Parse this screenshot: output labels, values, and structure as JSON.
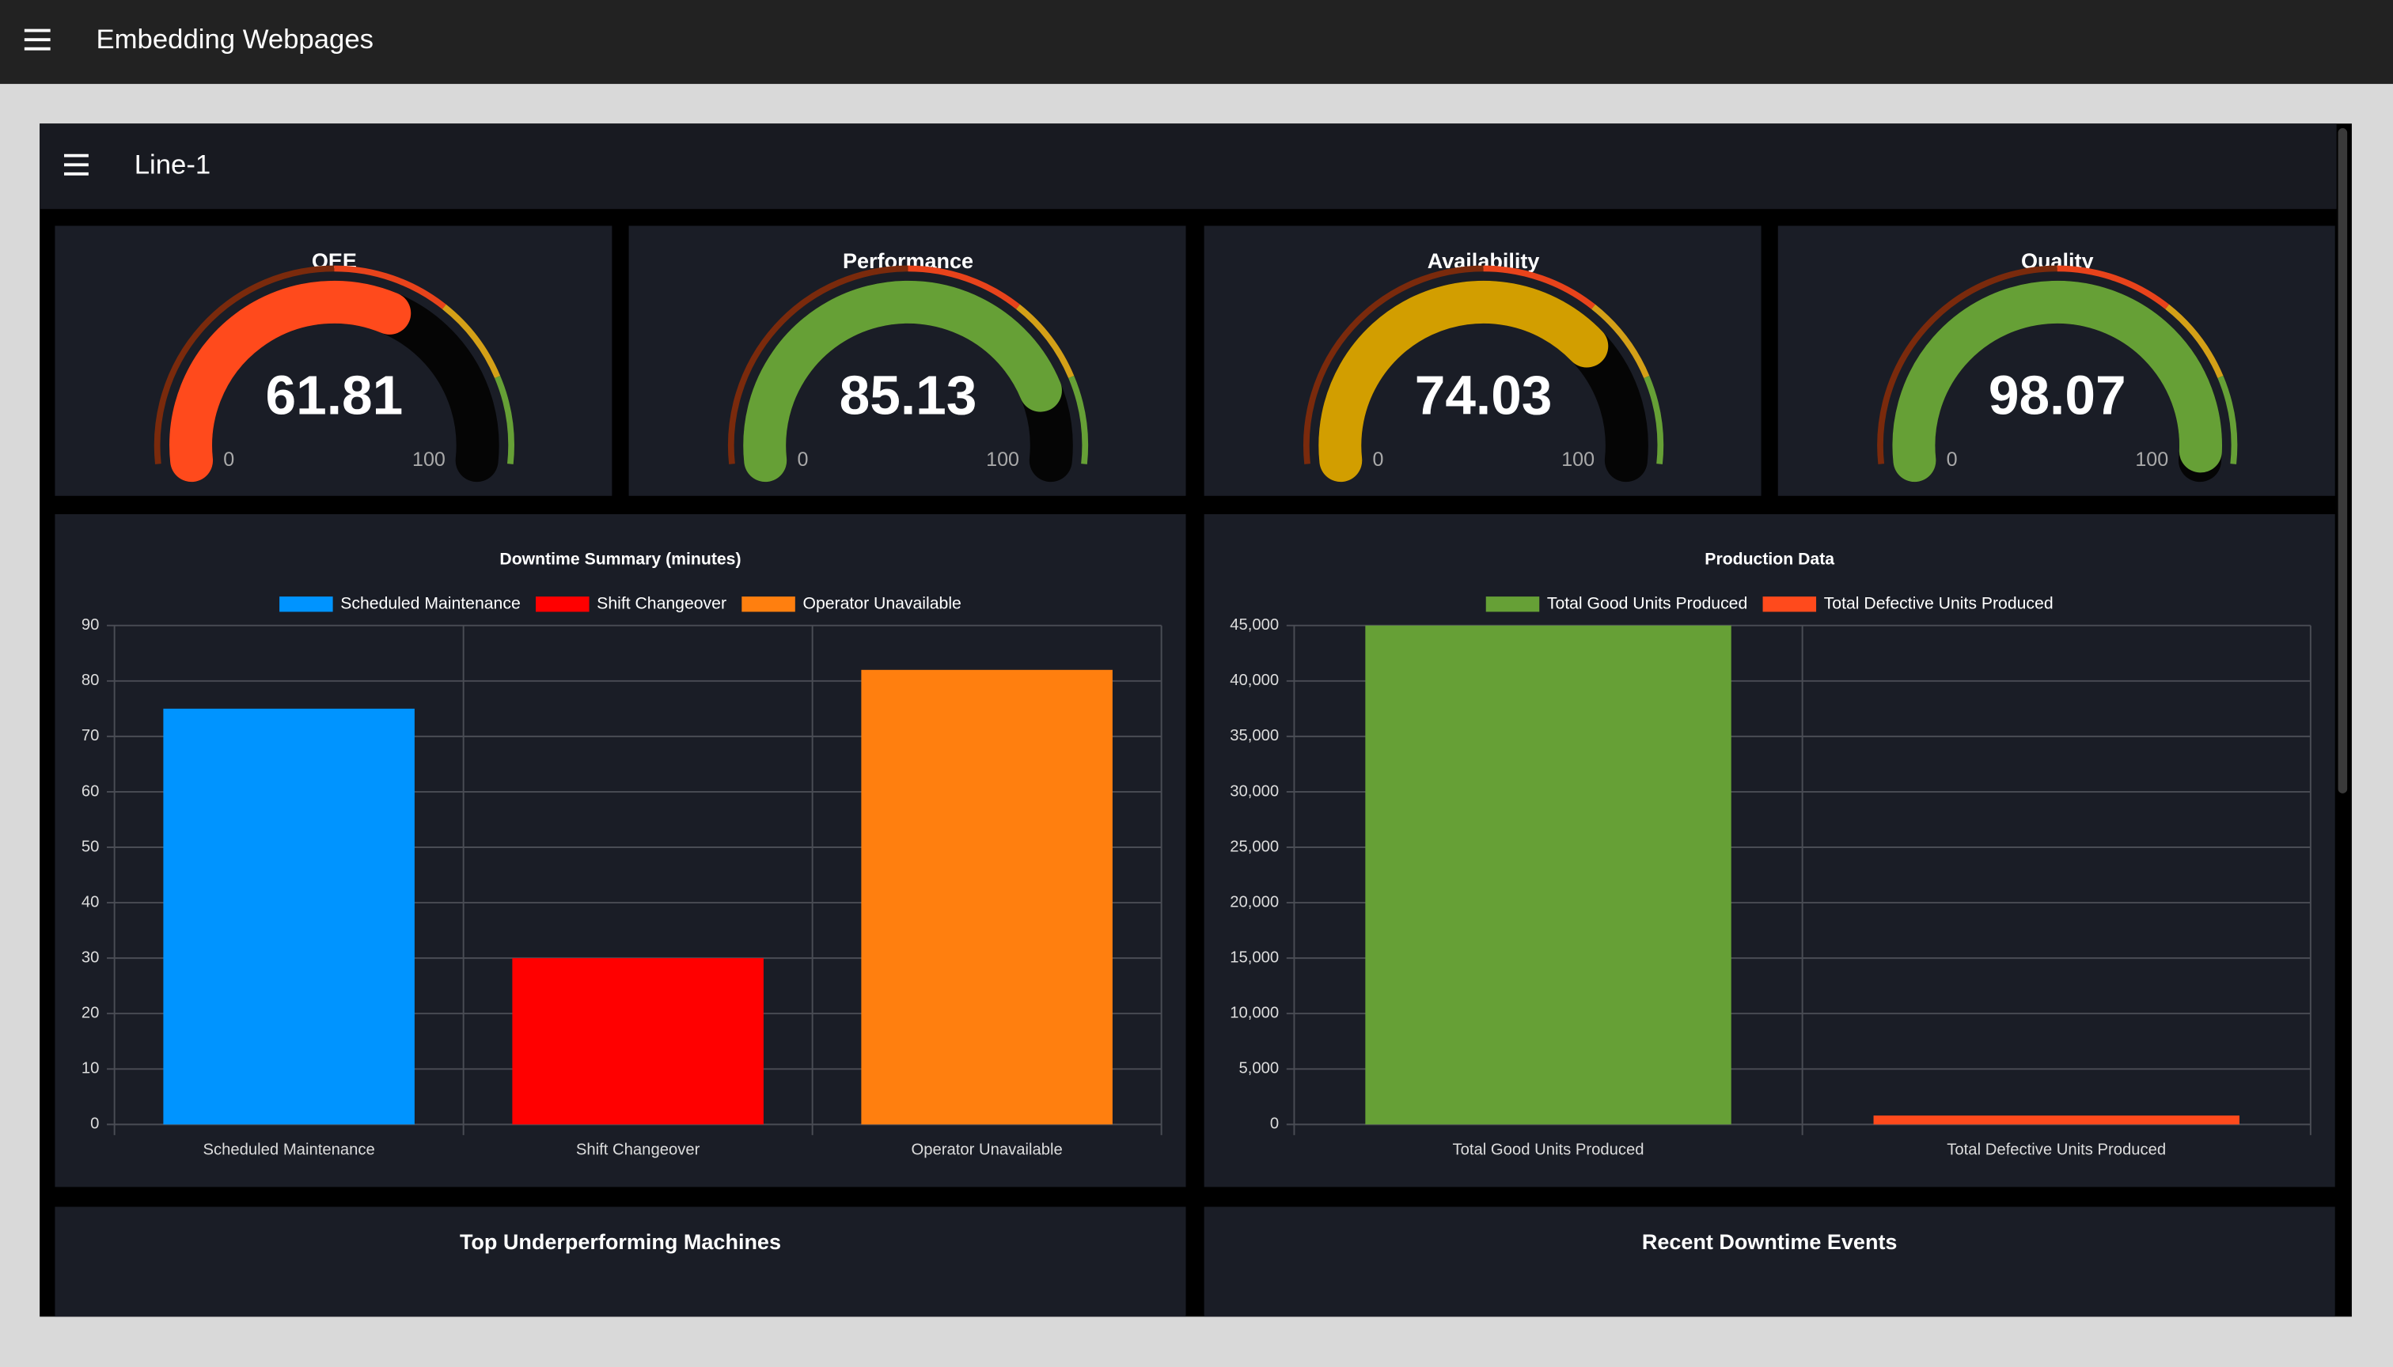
{
  "app_bar": {
    "title": "Embedding Webpages"
  },
  "dashboard": {
    "title": "Line-1"
  },
  "gauge_segments": [
    {
      "from": 0,
      "to": 50,
      "color": "#7a2a0c"
    },
    {
      "from": 50,
      "to": 70,
      "color": "#e8431b"
    },
    {
      "from": 70,
      "to": 85,
      "color": "#d4a017"
    },
    {
      "from": 85,
      "to": 100,
      "color": "#66a036"
    }
  ],
  "gauges": [
    {
      "title": "OEE",
      "value": 61.81,
      "min": 0,
      "max": 100,
      "color": "#ff4a1c"
    },
    {
      "title": "Performance",
      "value": 85.13,
      "min": 0,
      "max": 100,
      "color": "#66a036"
    },
    {
      "title": "Availability",
      "value": 74.03,
      "min": 0,
      "max": 100,
      "color": "#d29e00"
    },
    {
      "title": "Quality",
      "value": 98.07,
      "min": 0,
      "max": 100,
      "color": "#66a036"
    }
  ],
  "chart_data": [
    {
      "type": "bar",
      "title": "Downtime Summary (minutes)",
      "categories": [
        "Scheduled Maintenance",
        "Shift Changeover",
        "Operator Unavailable"
      ],
      "series": [
        {
          "name": "Scheduled Maintenance",
          "color": "#0094ff",
          "values": [
            75,
            null,
            null
          ]
        },
        {
          "name": "Shift Changeover",
          "color": "#ff0000",
          "values": [
            null,
            30,
            null
          ]
        },
        {
          "name": "Operator Unavailable",
          "color": "#ff7f0f",
          "values": [
            null,
            null,
            82
          ]
        }
      ],
      "ylim": [
        0,
        90
      ],
      "yticks": [
        0,
        10,
        20,
        30,
        40,
        50,
        60,
        70,
        80,
        90
      ],
      "grid": true
    },
    {
      "type": "bar",
      "title": "Production Data",
      "categories": [
        "Total Good Units Produced",
        "Total Defective Units Produced"
      ],
      "series": [
        {
          "name": "Total Good Units Produced",
          "color": "#66a036",
          "values": [
            45000,
            null
          ]
        },
        {
          "name": "Total Defective Units Produced",
          "color": "#ff4a1c",
          "values": [
            null,
            800
          ]
        }
      ],
      "ylim": [
        0,
        45000
      ],
      "yticks": [
        0,
        {
          "value": 5000,
          "label": "5,000"
        },
        {
          "value": 10000,
          "label": "10,000"
        },
        {
          "value": 15000,
          "label": "15,000"
        },
        {
          "value": 20000,
          "label": "20,000"
        },
        {
          "value": 25000,
          "label": "25,000"
        },
        {
          "value": 30000,
          "label": "30,000"
        },
        {
          "value": 35000,
          "label": "35,000"
        },
        {
          "value": 40000,
          "label": "40,000"
        },
        {
          "value": 45000,
          "label": "45,000"
        }
      ],
      "grid": true
    }
  ],
  "panels": [
    {
      "title": "Top Underperforming Machines"
    },
    {
      "title": "Recent Downtime Events"
    }
  ]
}
